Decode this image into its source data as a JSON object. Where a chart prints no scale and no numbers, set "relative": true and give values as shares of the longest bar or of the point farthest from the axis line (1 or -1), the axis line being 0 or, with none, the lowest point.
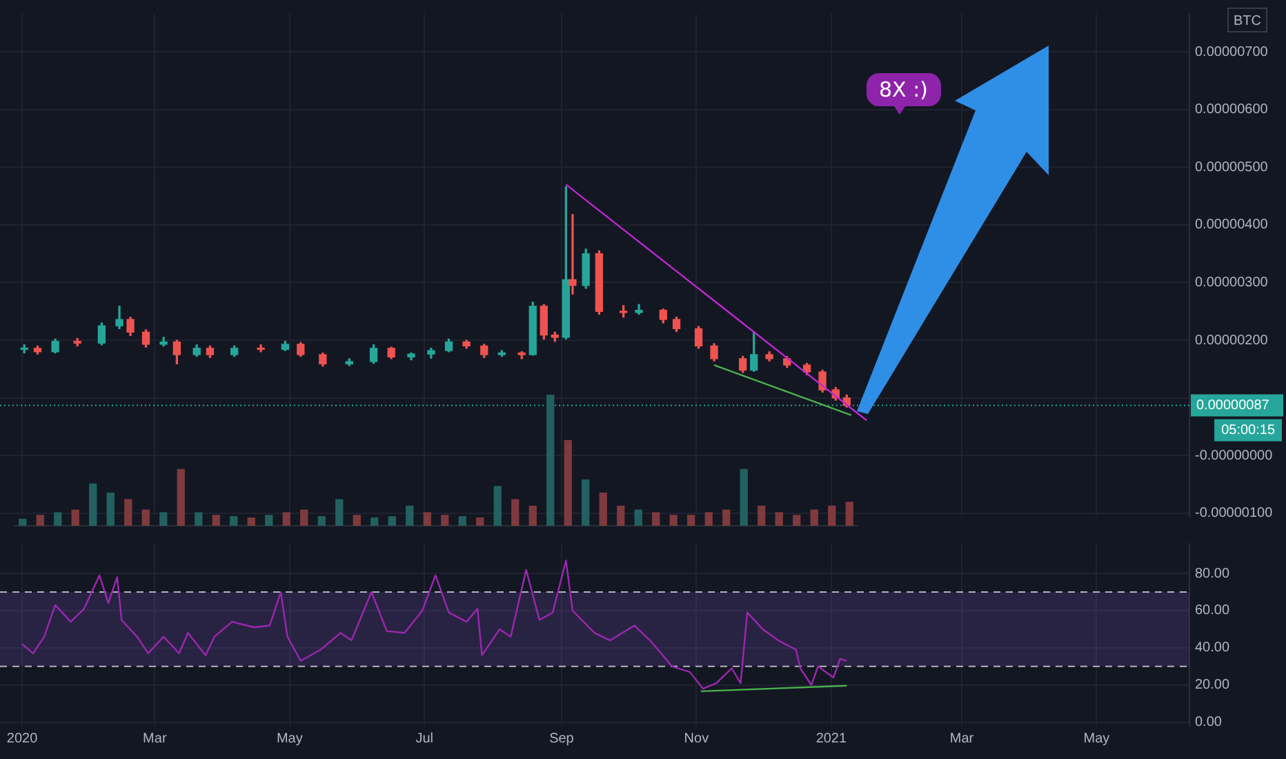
{
  "chart_data": [
    {
      "type": "candlestick",
      "ylabel": "BTC",
      "x": [
        "2020-01-02",
        "2020-01-08",
        "2020-01-16",
        "2020-01-26",
        "2020-02-06",
        "2020-02-14",
        "2020-02-19",
        "2020-02-26",
        "2020-03-05",
        "2020-03-11",
        "2020-03-20",
        "2020-03-26",
        "2020-04-06",
        "2020-04-18",
        "2020-04-29",
        "2020-05-06",
        "2020-05-16",
        "2020-05-28",
        "2020-06-08",
        "2020-06-16",
        "2020-06-25",
        "2020-07-04",
        "2020-07-12",
        "2020-07-20",
        "2020-07-28",
        "2020-08-05",
        "2020-08-14",
        "2020-08-19",
        "2020-08-24",
        "2020-08-29",
        "2020-09-03",
        "2020-09-06",
        "2020-09-12",
        "2020-09-18",
        "2020-09-29",
        "2020-10-06",
        "2020-10-17",
        "2020-10-23",
        "2020-11-02",
        "2020-11-09",
        "2020-11-22",
        "2020-11-27",
        "2020-12-04",
        "2020-12-12",
        "2020-12-21",
        "2020-12-28",
        "2021-01-03",
        "2021-01-08"
      ],
      "ohlc": [
        [
          1.84e-06,
          1.92e-06,
          1.78e-06,
          1.86e-06
        ],
        [
          1.86e-06,
          1.9e-06,
          1.76e-06,
          1.8e-06
        ],
        [
          1.8e-06,
          2.02e-06,
          1.78e-06,
          1.98e-06
        ],
        [
          1.98e-06,
          2.03e-06,
          1.9e-06,
          1.95e-06
        ],
        [
          1.95e-06,
          2.3e-06,
          1.92e-06,
          2.25e-06
        ],
        [
          2.25e-06,
          2.59e-06,
          2.2e-06,
          2.36e-06
        ],
        [
          2.36e-06,
          2.4e-06,
          2.08e-06,
          2.14e-06
        ],
        [
          2.14e-06,
          2.18e-06,
          1.88e-06,
          1.93e-06
        ],
        [
          1.93e-06,
          2.05e-06,
          1.9e-06,
          1.97e-06
        ],
        [
          1.97e-06,
          2e-06,
          1.59e-06,
          1.75e-06
        ],
        [
          1.75e-06,
          1.92e-06,
          1.72e-06,
          1.86e-06
        ],
        [
          1.86e-06,
          1.9e-06,
          1.7e-06,
          1.75e-06
        ],
        [
          1.75e-06,
          1.9e-06,
          1.72e-06,
          1.86e-06
        ],
        [
          1.86e-06,
          1.92e-06,
          1.8e-06,
          1.84e-06
        ],
        [
          1.84e-06,
          1.98e-06,
          1.82e-06,
          1.93e-06
        ],
        [
          1.93e-06,
          1.96e-06,
          1.72e-06,
          1.75e-06
        ],
        [
          1.75e-06,
          1.78e-06,
          1.55e-06,
          1.59e-06
        ],
        [
          1.59e-06,
          1.68e-06,
          1.56e-06,
          1.63e-06
        ],
        [
          1.63e-06,
          1.92e-06,
          1.6e-06,
          1.86e-06
        ],
        [
          1.86e-06,
          1.88e-06,
          1.68e-06,
          1.71e-06
        ],
        [
          1.71e-06,
          1.78e-06,
          1.66e-06,
          1.76e-06
        ],
        [
          1.76e-06,
          1.86e-06,
          1.69e-06,
          1.82e-06
        ],
        [
          1.82e-06,
          2.02e-06,
          1.8e-06,
          1.97e-06
        ],
        [
          1.97e-06,
          2e-06,
          1.86e-06,
          1.9e-06
        ],
        [
          1.9e-06,
          1.93e-06,
          1.7e-06,
          1.75e-06
        ],
        [
          1.75e-06,
          1.82e-06,
          1.72e-06,
          1.78e-06
        ],
        [
          1.78e-06,
          1.8e-06,
          1.68e-06,
          1.75e-06
        ],
        [
          1.75e-06,
          2.66e-06,
          1.74e-06,
          2.59e-06
        ],
        [
          2.59e-06,
          2.62e-06,
          2.02e-06,
          2.09e-06
        ],
        [
          2.09e-06,
          2.14e-06,
          1.98e-06,
          2.05e-06
        ],
        [
          2.05e-06,
          4.66e-06,
          2.02e-06,
          3.05e-06
        ],
        [
          3.05e-06,
          4.18e-06,
          2.8e-06,
          2.95e-06
        ],
        [
          2.95e-06,
          3.58e-06,
          2.9e-06,
          3.5e-06
        ],
        [
          3.5e-06,
          3.55e-06,
          2.45e-06,
          2.5e-06
        ],
        [
          2.5e-06,
          2.6e-06,
          2.4e-06,
          2.48e-06
        ],
        [
          2.48e-06,
          2.62e-06,
          2.45e-06,
          2.52e-06
        ],
        [
          2.52e-06,
          2.54e-06,
          2.3e-06,
          2.36e-06
        ],
        [
          2.36e-06,
          2.4e-06,
          2.15e-06,
          2.2e-06
        ],
        [
          2.2e-06,
          2.24e-06,
          1.86e-06,
          1.9e-06
        ],
        [
          1.9e-06,
          1.94e-06,
          1.64e-06,
          1.68e-06
        ],
        [
          1.68e-06,
          1.72e-06,
          1.44e-06,
          1.48e-06
        ],
        [
          1.48e-06,
          2.14e-06,
          1.46e-06,
          1.75e-06
        ],
        [
          1.75e-06,
          1.8e-06,
          1.64e-06,
          1.68e-06
        ],
        [
          1.68e-06,
          1.72e-06,
          1.53e-06,
          1.57e-06
        ],
        [
          1.57e-06,
          1.6e-06,
          1.4e-06,
          1.45e-06
        ],
        [
          1.45e-06,
          1.48e-06,
          1.1e-06,
          1.14e-06
        ],
        [
          1.14e-06,
          1.18e-06,
          9.6e-07,
          1e-06
        ],
        [
          1e-06,
          1.05e-06,
          8.4e-07,
          8.7e-07
        ]
      ],
      "colors": [
        "#26a69a",
        "#ef5350",
        "#26a69a",
        "#ef5350",
        "#26a69a",
        "#26a69a",
        "#ef5350",
        "#ef5350",
        "#26a69a",
        "#ef5350",
        "#26a69a",
        "#ef5350",
        "#26a69a",
        "#ef5350",
        "#26a69a",
        "#ef5350",
        "#ef5350",
        "#26a69a",
        "#26a69a",
        "#ef5350",
        "#26a69a",
        "#26a69a",
        "#26a69a",
        "#ef5350",
        "#ef5350",
        "#26a69a",
        "#ef5350",
        "#26a69a",
        "#ef5350",
        "#ef5350",
        "#26a69a",
        "#ef5350",
        "#26a69a",
        "#ef5350",
        "#ef5350",
        "#26a69a",
        "#ef5350",
        "#ef5350",
        "#ef5350",
        "#ef5350",
        "#ef5350",
        "#26a69a",
        "#ef5350",
        "#ef5350",
        "#ef5350",
        "#ef5350",
        "#ef5350",
        "#ef5350"
      ],
      "series": [
        {
          "type": "line",
          "color": "#c026d3",
          "x": [
            "2020-09-03",
            "2021-01-17"
          ],
          "values": [
            4.7e-06,
            6.1e-07
          ]
        },
        {
          "type": "line",
          "color": "#4caf50",
          "x": [
            "2020-11-09",
            "2021-01-10"
          ],
          "values": [
            1.57e-06,
            7e-07
          ]
        }
      ],
      "xlim": [
        "2019-12-22",
        "2021-06-12"
      ],
      "xticks": [
        "2020-01-01",
        "2020-03-01",
        "2020-05-01",
        "2020-07-01",
        "2020-09-01",
        "2020-11-01",
        "2021-01-01",
        "2021-03-01",
        "2021-05-01"
      ],
      "ylim": [
        -1.05e-06,
        7.66e-06
      ],
      "yticks": [
        {
          "value": -1e-06,
          "label": "-0.00000100"
        },
        {
          "value": 0,
          "label": "-0.00000000"
        },
        {
          "value": 1e-06,
          "label": null
        },
        {
          "value": 2e-06,
          "label": "0.00000200"
        },
        {
          "value": 3e-06,
          "label": "0.00000300"
        },
        {
          "value": 4e-06,
          "label": "0.00000400"
        },
        {
          "value": 5e-06,
          "label": "0.00000500"
        },
        {
          "value": 6e-06,
          "label": "0.00000600"
        },
        {
          "value": 7e-06,
          "label": "0.00000700"
        }
      ],
      "ref_lines": [
        {
          "axis": "y",
          "value": 8.7e-07,
          "label": "0.00000087",
          "color": "#26a69a",
          "line_style": "dotted"
        }
      ],
      "annotations": [
        "05:00:15",
        "8X :)"
      ],
      "grid": true,
      "tick_labels": "y",
      "legend": false,
      "marker": "none"
    },
    {
      "type": "bar",
      "relative": true,
      "categories": [
        null,
        null,
        null,
        null,
        null,
        null,
        null,
        null,
        null,
        null,
        null,
        null,
        null,
        null,
        null,
        null,
        null,
        null,
        null,
        null,
        null,
        null,
        null,
        null,
        null,
        null,
        null,
        null,
        null,
        null,
        null,
        null,
        null,
        null,
        null,
        null,
        null,
        null,
        null,
        null,
        null,
        null,
        null,
        null,
        null,
        null,
        null,
        null
      ],
      "values": [
        0.05,
        0.08,
        0.1,
        0.12,
        0.32,
        0.25,
        0.2,
        0.12,
        0.1,
        0.43,
        0.1,
        0.08,
        0.07,
        0.06,
        0.08,
        0.1,
        0.12,
        0.07,
        0.2,
        0.08,
        0.06,
        0.07,
        0.15,
        0.1,
        0.08,
        0.07,
        0.06,
        0.3,
        0.2,
        0.15,
        1,
        0.65,
        0.35,
        0.25,
        0.15,
        0.12,
        0.1,
        0.08,
        0.08,
        0.1,
        0.12,
        0.43,
        0.15,
        0.1,
        0.08,
        0.12,
        0.15,
        0.18
      ],
      "colors": [
        "#22615f",
        "#7e3a3e",
        "#22615f",
        "#7e3a3e",
        "#22615f",
        "#22615f",
        "#7e3a3e",
        "#7e3a3e",
        "#22615f",
        "#7e3a3e",
        "#22615f",
        "#7e3a3e",
        "#22615f",
        "#7e3a3e",
        "#22615f",
        "#7e3a3e",
        "#7e3a3e",
        "#22615f",
        "#22615f",
        "#7e3a3e",
        "#22615f",
        "#22615f",
        "#22615f",
        "#7e3a3e",
        "#7e3a3e",
        "#22615f",
        "#7e3a3e",
        "#22615f",
        "#7e3a3e",
        "#7e3a3e",
        "#22615f",
        "#7e3a3e",
        "#22615f",
        "#7e3a3e",
        "#7e3a3e",
        "#22615f",
        "#7e3a3e",
        "#7e3a3e",
        "#7e3a3e",
        "#7e3a3e",
        "#7e3a3e",
        "#22615f",
        "#7e3a3e",
        "#7e3a3e",
        "#7e3a3e",
        "#7e3a3e",
        "#7e3a3e",
        "#7e3a3e"
      ],
      "tick_labels": false,
      "legend": false
    },
    {
      "type": "line",
      "series": [
        {
          "color": "#9c27b0",
          "x": [
            "2020-01-01",
            "2020-01-06",
            "2020-01-11",
            "2020-01-16",
            "2020-01-23",
            "2020-01-29",
            "2020-02-05",
            "2020-02-09",
            "2020-02-13",
            "2020-02-15",
            "2020-02-22",
            "2020-02-27",
            "2020-03-05",
            "2020-03-12",
            "2020-03-16",
            "2020-03-24",
            "2020-03-28",
            "2020-04-05",
            "2020-04-15",
            "2020-04-22",
            "2020-04-27",
            "2020-04-30",
            "2020-05-06",
            "2020-05-15",
            "2020-05-24",
            "2020-05-29",
            "2020-06-07",
            "2020-06-14",
            "2020-06-22",
            "2020-06-30",
            "2020-07-06",
            "2020-07-12",
            "2020-07-20",
            "2020-07-25",
            "2020-07-27",
            "2020-08-04",
            "2020-08-09",
            "2020-08-16",
            "2020-08-22",
            "2020-08-28",
            "2020-09-03",
            "2020-09-06",
            "2020-09-16",
            "2020-09-23",
            "2020-10-04",
            "2020-10-11",
            "2020-10-21",
            "2020-10-29",
            "2020-11-04",
            "2020-11-10",
            "2020-11-17",
            "2020-11-21",
            "2020-11-24",
            "2020-12-01",
            "2020-12-08",
            "2020-12-16",
            "2020-12-18",
            "2020-12-23",
            "2020-12-26",
            "2021-01-02",
            "2021-01-05",
            "2021-01-08"
          ],
          "values": [
            42,
            37,
            46,
            63,
            54,
            61,
            79,
            64,
            78,
            55,
            46,
            37,
            46,
            37,
            48,
            36,
            46,
            54,
            51,
            52,
            70,
            46,
            33,
            39,
            48,
            44,
            70,
            49,
            48,
            60,
            79,
            59,
            54,
            61,
            36,
            50,
            46,
            82,
            55,
            59,
            87,
            60,
            48,
            44,
            52,
            44,
            30,
            27,
            18,
            21,
            29,
            21,
            59,
            50,
            44,
            39,
            29,
            20,
            30,
            24,
            34,
            33
          ]
        },
        {
          "color": "#4caf50",
          "x": [
            "2020-11-03",
            "2021-01-08"
          ],
          "values": [
            16.6,
            19.6
          ]
        }
      ],
      "xlim": [
        "2019-12-22",
        "2021-06-12"
      ],
      "xticks": [
        {
          "value": "2020-01-01",
          "label": "2020"
        },
        {
          "value": "2020-03-01",
          "label": "Mar"
        },
        {
          "value": "2020-05-01",
          "label": "May"
        },
        {
          "value": "2020-07-01",
          "label": "Jul"
        },
        {
          "value": "2020-09-01",
          "label": "Sep"
        },
        {
          "value": "2020-11-01",
          "label": "Nov"
        },
        {
          "value": "2021-01-01",
          "label": "2021"
        },
        {
          "value": "2021-03-01",
          "label": "Mar"
        },
        {
          "value": "2021-05-01",
          "label": "May"
        }
      ],
      "ylim": [
        -2,
        96
      ],
      "yticks": [
        {
          "value": 0,
          "label": "0.00"
        },
        {
          "value": 20,
          "label": "20.00"
        },
        {
          "value": 40,
          "label": "40.00"
        },
        {
          "value": 60,
          "label": "60.00"
        },
        {
          "value": 80,
          "label": "80.00"
        }
      ],
      "bands": [
        {
          "axis": "y",
          "from": 30,
          "to": 70,
          "color": "#7e57c2"
        }
      ],
      "ref_lines": [
        {
          "axis": "y",
          "value": 70,
          "color": "#b2b5be",
          "line_style": "dashed"
        },
        {
          "axis": "y",
          "value": 30,
          "color": "#b2b5be",
          "line_style": "dashed"
        }
      ],
      "grid": true,
      "legend": false,
      "marker": "none",
      "line_style": "solid"
    }
  ]
}
